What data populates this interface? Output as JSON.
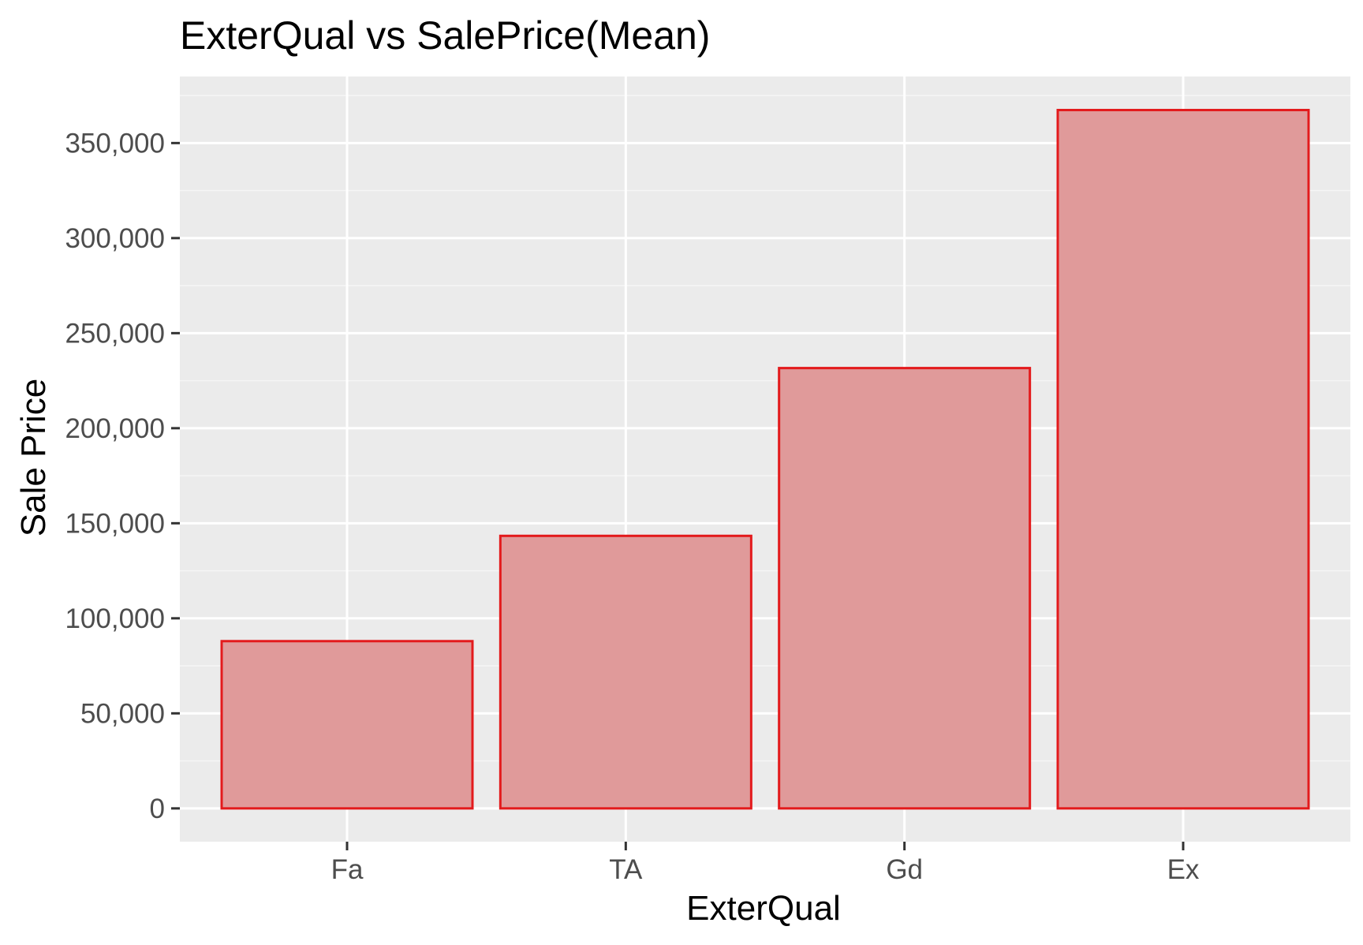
{
  "chart_data": {
    "type": "bar",
    "title": "ExterQual vs SalePrice(Mean)",
    "xlabel": "ExterQual",
    "ylabel": "Sale Price",
    "categories": [
      "Fa",
      "TA",
      "Gd",
      "Ex"
    ],
    "values": [
      87985,
      143370,
      231634,
      367361
    ],
    "ylim": [
      -17500,
      385000
    ],
    "yticks": [
      0,
      50000,
      100000,
      150000,
      200000,
      250000,
      300000,
      350000
    ],
    "ytick_labels": [
      "0",
      "50,000",
      "100,000",
      "150,000",
      "200,000",
      "250,000",
      "300,000",
      "350,000"
    ],
    "grid": true,
    "legend": "none",
    "colors": {
      "bar_fill": "#e09a9a",
      "bar_stroke": "#e31a1c",
      "panel_background": "#ebebeb",
      "grid_major": "#ffffff",
      "grid_minor": "#f5f5f5",
      "tick_label": "#4d4d4d"
    }
  }
}
